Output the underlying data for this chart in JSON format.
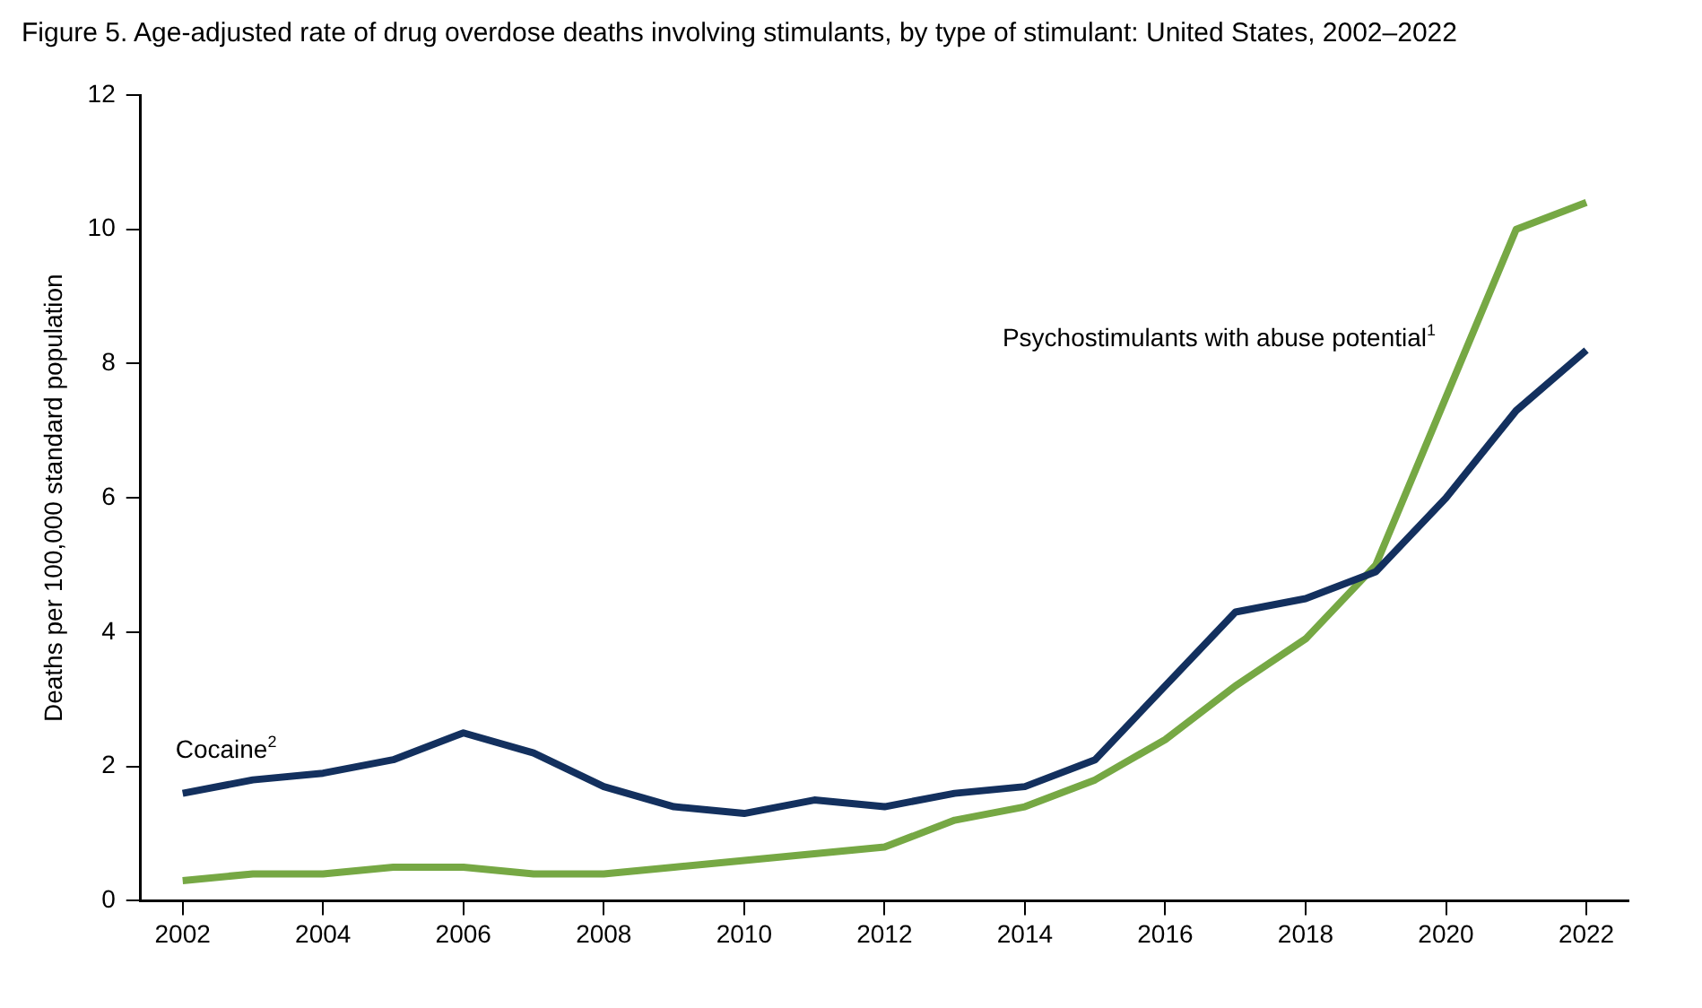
{
  "chart_data": {
    "type": "line",
    "title": "Figure 5. Age-adjusted rate of drug overdose deaths involving stimulants, by type of stimulant: United States, 2002–2022",
    "ylabel": "Deaths per 100,000 standard population",
    "x": [
      2002,
      2003,
      2004,
      2005,
      2006,
      2007,
      2008,
      2009,
      2010,
      2011,
      2012,
      2013,
      2014,
      2015,
      2016,
      2017,
      2018,
      2019,
      2020,
      2021,
      2022
    ],
    "series": [
      {
        "name": "Cocaine$^{2}$",
        "color": "#13305e",
        "values": [
          1.6,
          1.8,
          1.9,
          2.1,
          2.5,
          2.2,
          1.7,
          1.4,
          1.3,
          1.5,
          1.4,
          1.6,
          1.7,
          2.1,
          3.2,
          4.3,
          4.5,
          4.9,
          6.0,
          7.3,
          8.2
        ]
      },
      {
        "name": "Psychostimulants with abuse potential$^{1}$",
        "color": "#76a844",
        "values": [
          0.3,
          0.4,
          0.4,
          0.5,
          0.5,
          0.4,
          0.4,
          0.5,
          0.6,
          0.7,
          0.8,
          1.2,
          1.4,
          1.8,
          2.4,
          3.2,
          3.9,
          5.0,
          7.5,
          10.0,
          10.4
        ]
      }
    ],
    "xlim": [
      2001.4,
      2022.6
    ],
    "xticks": [
      2002,
      2004,
      2006,
      2008,
      2010,
      2012,
      2014,
      2016,
      2018,
      2020,
      2022
    ],
    "ylim": [
      0,
      12
    ],
    "yticks": [
      0,
      2,
      4,
      6,
      8,
      10,
      12
    ],
    "grid": false,
    "legend": false,
    "marker": "none",
    "line_style": "solid"
  }
}
